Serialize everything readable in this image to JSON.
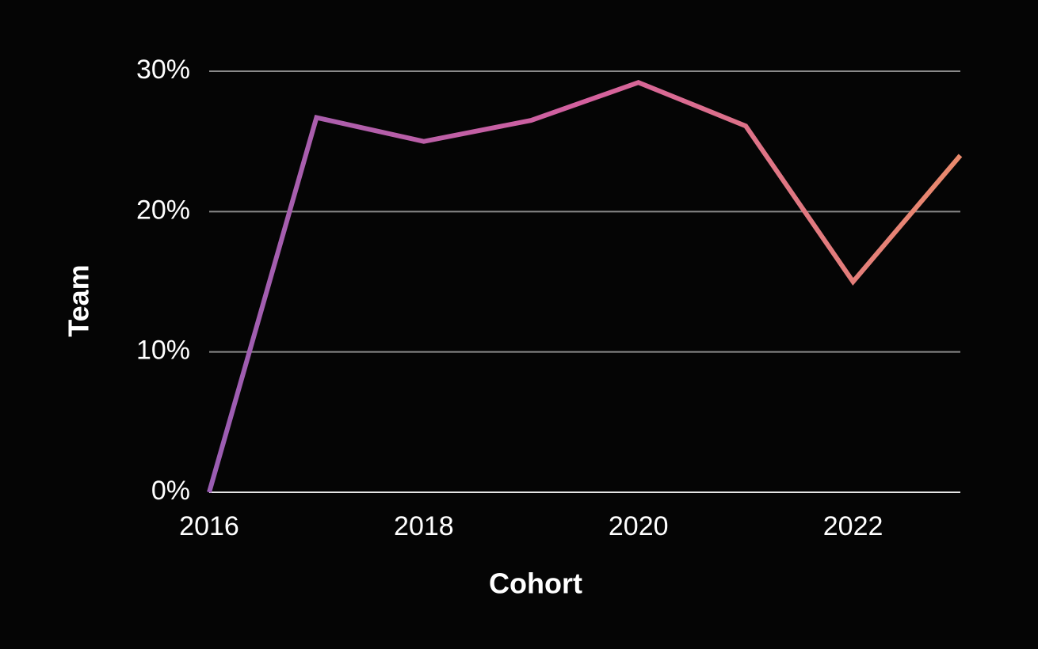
{
  "chart_data": {
    "type": "line",
    "x_label": "Cohort",
    "y_label": "Team",
    "series": [
      {
        "name": "Team",
        "color": [
          "#9a5db3",
          "#d4609e",
          "#ea8a6c"
        ],
        "x": [
          2016,
          2017,
          2018,
          2019,
          2020,
          2021,
          2022,
          2023
        ],
        "values": [
          0,
          26.7,
          25.0,
          26.5,
          29.2,
          26.1,
          15.0,
          24.0
        ]
      }
    ],
    "xlim": [
      2016,
      2023
    ],
    "xticks": [
      2016,
      2018,
      2020,
      2022
    ],
    "ylim": [
      0,
      30
    ],
    "yticks": [
      {
        "value": 0,
        "label": "0%"
      },
      {
        "value": 10,
        "label": "10%"
      },
      {
        "value": 20,
        "label": "20%"
      },
      {
        "value": 30,
        "label": "30%"
      }
    ],
    "grid": true
  }
}
